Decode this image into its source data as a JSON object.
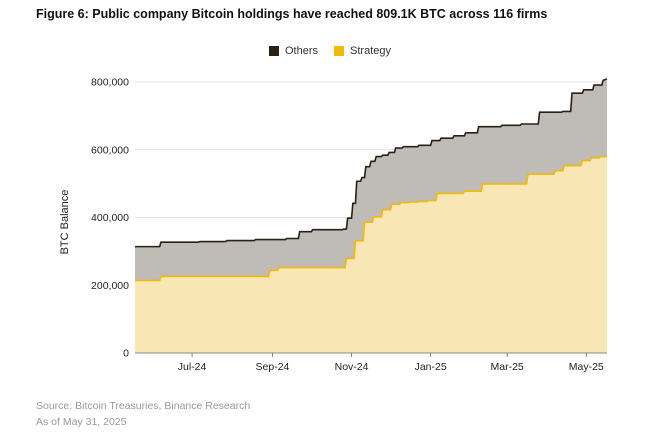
{
  "figure": {
    "title": "Figure 6: Public company Bitcoin holdings have reached 809.1K BTC across 116 firms",
    "source": "Source: Bitcoin Treasuries, Binance Research",
    "asof": "As of May 31, 2025"
  },
  "chart_data": {
    "type": "area",
    "stacked": true,
    "ylabel": "BTC Balance",
    "ylim": [
      0,
      800000
    ],
    "y_ticks": [
      0,
      200000,
      400000,
      600000,
      800000
    ],
    "y_tick_labels": [
      "0",
      "200,000",
      "400,000",
      "600,000",
      "800,000"
    ],
    "x_ticks": [
      "2024-07-15",
      "2024-09-15",
      "2024-11-15",
      "2025-01-15",
      "2025-03-15",
      "2025-05-15"
    ],
    "x_tick_labels": [
      "Jul-24",
      "Sep-24",
      "Nov-24",
      "Jan-25",
      "Mar-25",
      "May-25"
    ],
    "xlim": [
      "2024-06-01",
      "2025-05-31"
    ],
    "grid": true,
    "legend_position": "top-center",
    "series": [
      {
        "name": "Strategy",
        "color": "#F0B90B",
        "fill": "#F8E7B4",
        "x": [
          "2024-06-01",
          "2024-06-20",
          "2024-06-21",
          "2024-08-01",
          "2024-08-02",
          "2024-09-12",
          "2024-09-13",
          "2024-09-19",
          "2024-09-20",
          "2024-11-01",
          "2024-11-10",
          "2024-11-11",
          "2024-11-17",
          "2024-11-18",
          "2024-11-24",
          "2024-11-25",
          "2024-12-01",
          "2024-12-02",
          "2024-12-08",
          "2024-12-09",
          "2024-12-15",
          "2024-12-16",
          "2024-12-22",
          "2024-12-23",
          "2024-12-29",
          "2024-12-30",
          "2025-01-05",
          "2025-01-06",
          "2025-01-12",
          "2025-01-13",
          "2025-01-19",
          "2025-01-20",
          "2025-02-09",
          "2025-02-10",
          "2025-02-23",
          "2025-02-24",
          "2025-03-30",
          "2025-03-31",
          "2025-04-20",
          "2025-04-21",
          "2025-04-27",
          "2025-04-28",
          "2025-05-11",
          "2025-05-12",
          "2025-05-18",
          "2025-05-19",
          "2025-05-25",
          "2025-05-26",
          "2025-05-31"
        ],
        "values": [
          214000,
          214000,
          226000,
          226000,
          226000,
          226000,
          244000,
          244000,
          252000,
          252000,
          252000,
          279000,
          279000,
          331000,
          331000,
          386000,
          386000,
          402000,
          402000,
          423000,
          423000,
          439000,
          439000,
          444000,
          444000,
          446000,
          446000,
          447000,
          447000,
          450000,
          450000,
          471000,
          471000,
          478000,
          478000,
          499000,
          499000,
          528000,
          528000,
          538000,
          538000,
          553000,
          553000,
          568000,
          568000,
          576000,
          576000,
          580000,
          580000
        ]
      },
      {
        "name": "Others",
        "color": "#2A2116",
        "fill": "#BFBBB6",
        "x": [
          "2024-06-01",
          "2024-06-20",
          "2024-06-21",
          "2024-07-20",
          "2024-07-21",
          "2024-08-10",
          "2024-08-11",
          "2024-09-01",
          "2024-09-02",
          "2024-09-25",
          "2024-09-26",
          "2024-10-05",
          "2024-10-06",
          "2024-10-15",
          "2024-10-16",
          "2024-11-08",
          "2024-11-09",
          "2024-11-11",
          "2024-11-12",
          "2024-11-15",
          "2024-11-16",
          "2024-11-18",
          "2024-11-19",
          "2024-11-22",
          "2024-11-23",
          "2024-11-25",
          "2024-11-26",
          "2024-11-29",
          "2024-11-30",
          "2024-12-03",
          "2024-12-04",
          "2024-12-08",
          "2024-12-09",
          "2024-12-13",
          "2024-12-14",
          "2024-12-18",
          "2024-12-19",
          "2024-12-24",
          "2024-12-25",
          "2025-01-05",
          "2025-01-06",
          "2025-01-15",
          "2025-01-16",
          "2025-01-22",
          "2025-01-23",
          "2025-02-01",
          "2025-02-02",
          "2025-02-10",
          "2025-02-11",
          "2025-02-20",
          "2025-02-21",
          "2025-03-10",
          "2025-03-11",
          "2025-03-25",
          "2025-03-26",
          "2025-04-08",
          "2025-04-09",
          "2025-04-26",
          "2025-04-27",
          "2025-05-03",
          "2025-05-04",
          "2025-05-12",
          "2025-05-13",
          "2025-05-20",
          "2025-05-21",
          "2025-05-27",
          "2025-05-28",
          "2025-05-31"
        ],
        "totals": [
          314000,
          314000,
          327000,
          327000,
          329000,
          329000,
          332000,
          332000,
          335000,
          335000,
          338000,
          338000,
          358000,
          358000,
          364000,
          364000,
          366000,
          366000,
          398000,
          398000,
          442000,
          442000,
          507000,
          507000,
          518000,
          518000,
          550000,
          550000,
          566000,
          566000,
          580000,
          580000,
          584000,
          584000,
          592000,
          592000,
          605000,
          605000,
          609000,
          609000,
          613000,
          613000,
          627000,
          627000,
          634000,
          634000,
          641000,
          641000,
          650000,
          650000,
          668000,
          668000,
          672000,
          672000,
          676000,
          676000,
          711000,
          711000,
          713000,
          713000,
          767000,
          767000,
          777000,
          777000,
          791000,
          791000,
          805000,
          809100
        ]
      }
    ]
  }
}
